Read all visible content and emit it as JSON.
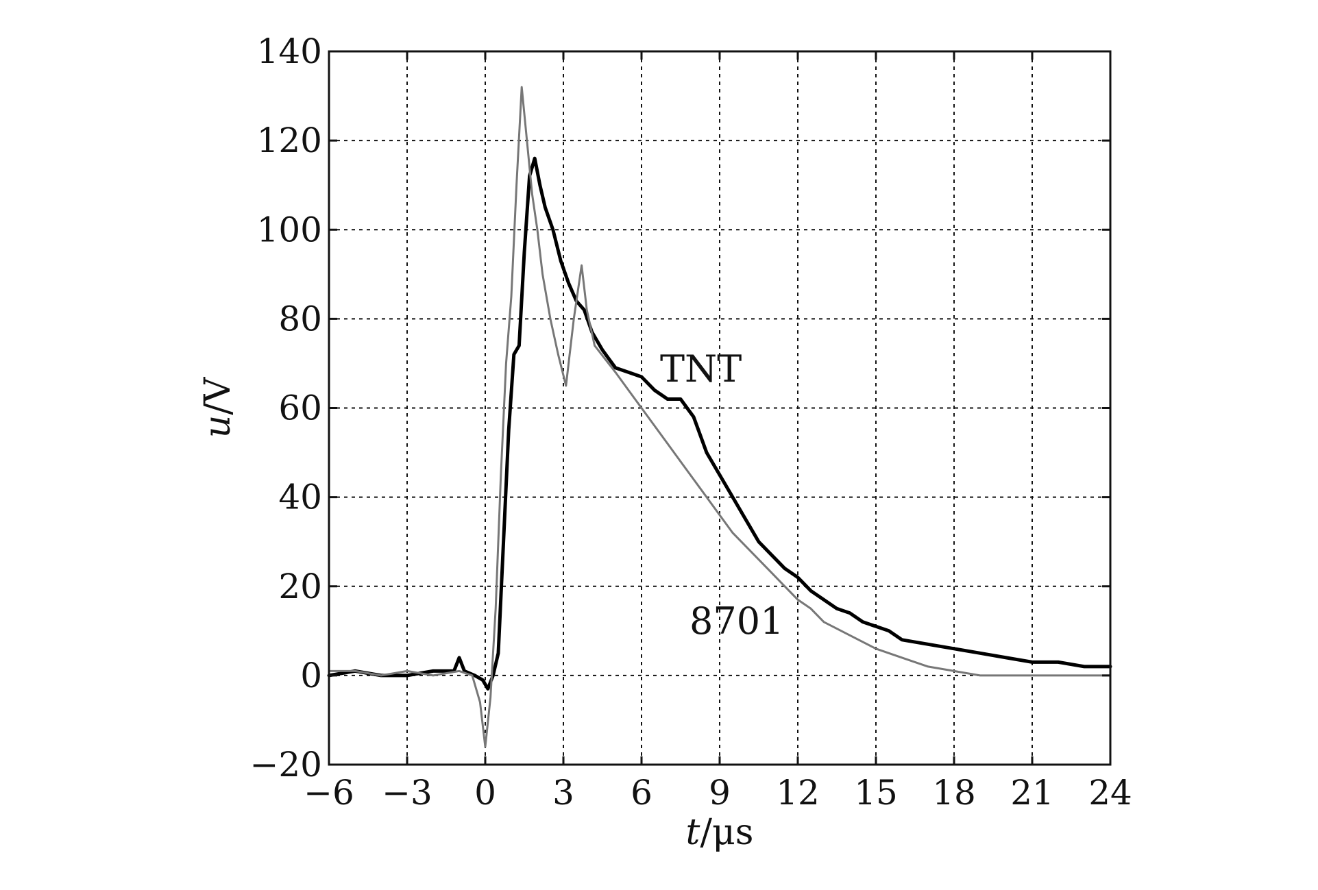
{
  "chart_data": {
    "type": "line",
    "xlabel_italic": "t",
    "xlabel_unit": "/μs",
    "ylabel_italic": "u",
    "ylabel_unit": "/V",
    "xlim": [
      -6,
      24
    ],
    "ylim": [
      -20,
      140
    ],
    "xticks": [
      -6,
      -3,
      0,
      3,
      6,
      9,
      12,
      15,
      18,
      21,
      24
    ],
    "yticks": [
      -20,
      0,
      20,
      40,
      60,
      80,
      100,
      120,
      140
    ],
    "xtick_labels": [
      "−6",
      "−3",
      "0",
      "3",
      "6",
      "9",
      "12",
      "15",
      "18",
      "21",
      "24"
    ],
    "ytick_labels": [
      "−20",
      "0",
      "20",
      "40",
      "60",
      "80",
      "100",
      "120",
      "140"
    ],
    "grid": true,
    "series": [
      {
        "name": "TNT",
        "color": "#000000",
        "x": [
          -6,
          -5,
          -4,
          -3,
          -2,
          -1.2,
          -1,
          -0.8,
          -0.4,
          -0.1,
          0.1,
          0.3,
          0.5,
          0.7,
          0.9,
          1.1,
          1.3,
          1.5,
          1.7,
          1.9,
          2.1,
          2.3,
          2.6,
          2.9,
          3.2,
          3.5,
          3.8,
          4.1,
          4.5,
          5.0,
          5.5,
          6.0,
          6.5,
          7.0,
          7.5,
          8.0,
          8.5,
          9.0,
          9.5,
          10.0,
          10.5,
          11.0,
          11.5,
          12.0,
          12.5,
          13.0,
          13.5,
          14.0,
          14.5,
          15.0,
          15.5,
          16.0,
          17.0,
          18.0,
          19.0,
          20.0,
          21.0,
          22.0,
          23.0,
          24.0
        ],
        "y": [
          0,
          1,
          0,
          0,
          1,
          1,
          4,
          1,
          0,
          -1,
          -3,
          0,
          5,
          30,
          55,
          72,
          74,
          95,
          112,
          116,
          110,
          105,
          100,
          93,
          88,
          84,
          82,
          77,
          73,
          69,
          68,
          67,
          64,
          62,
          62,
          58,
          50,
          45,
          40,
          35,
          30,
          27,
          24,
          22,
          19,
          17,
          15,
          14,
          12,
          11,
          10,
          8,
          7,
          6,
          5,
          4,
          3,
          3,
          2,
          2
        ]
      },
      {
        "name": "8701",
        "color": "#777777",
        "x": [
          -6,
          -5,
          -4,
          -3,
          -2,
          -1,
          -0.5,
          -0.2,
          0,
          0.2,
          0.4,
          0.6,
          0.8,
          1.0,
          1.2,
          1.4,
          1.6,
          1.8,
          2.0,
          2.2,
          2.5,
          2.8,
          3.1,
          3.4,
          3.7,
          3.9,
          4.2,
          4.6,
          5.0,
          5.5,
          6.0,
          6.5,
          7.0,
          7.5,
          8.0,
          8.5,
          9.0,
          9.5,
          10.0,
          10.5,
          11.0,
          11.5,
          12.0,
          12.5,
          13.0,
          14.0,
          15.0,
          16.0,
          17.0,
          18.0,
          19.0,
          20.0,
          21.0,
          22.0,
          23.0,
          24.0
        ],
        "y": [
          1,
          1,
          0,
          1,
          0,
          1,
          0,
          -6,
          -16,
          -5,
          15,
          45,
          70,
          85,
          110,
          132,
          120,
          108,
          100,
          90,
          80,
          72,
          65,
          80,
          92,
          82,
          74,
          71,
          68,
          64,
          60,
          56,
          52,
          48,
          44,
          40,
          36,
          32,
          29,
          26,
          23,
          20,
          17,
          15,
          12,
          9,
          6,
          4,
          2,
          1,
          0,
          0,
          0,
          0,
          0,
          0
        ]
      }
    ],
    "annotations": [
      "TNT",
      "8701"
    ]
  }
}
